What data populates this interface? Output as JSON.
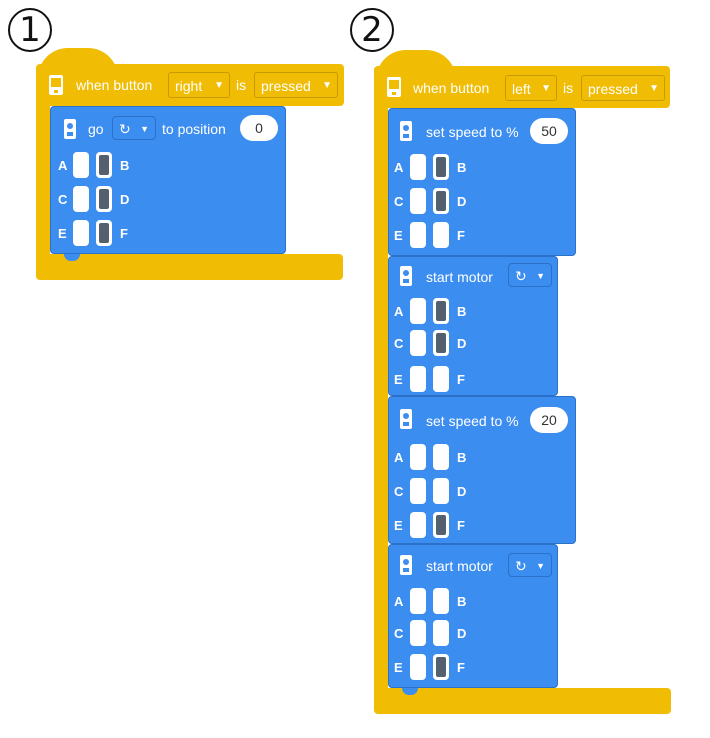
{
  "program1": {
    "number": "1",
    "event": {
      "prefix": "when button",
      "button": "right",
      "is": "is",
      "state": "pressed"
    },
    "blocks": [
      {
        "label": "go",
        "direction_icon": "rotate-clockwise-icon",
        "suffix": "to position",
        "value": "0",
        "ports": {
          "A": false,
          "B": true,
          "C": false,
          "D": true,
          "E": false,
          "F": true
        }
      }
    ]
  },
  "program2": {
    "number": "2",
    "event": {
      "prefix": "when button",
      "button": "left",
      "is": "is",
      "state": "pressed"
    },
    "blocks": [
      {
        "label": "set speed to %",
        "value": "50",
        "ports": {
          "A": false,
          "B": true,
          "C": false,
          "D": true,
          "E": false,
          "F": false
        }
      },
      {
        "label": "start motor",
        "direction_icon": "rotate-clockwise-icon",
        "ports": {
          "A": false,
          "B": true,
          "C": false,
          "D": true,
          "E": false,
          "F": false
        }
      },
      {
        "label": "set speed to %",
        "value": "20",
        "ports": {
          "A": false,
          "B": false,
          "C": false,
          "D": false,
          "E": false,
          "F": true
        }
      },
      {
        "label": "start motor",
        "direction_icon": "rotate-clockwise-icon",
        "ports": {
          "A": false,
          "B": false,
          "C": false,
          "D": false,
          "E": false,
          "F": true
        }
      }
    ]
  },
  "colors": {
    "event": "#f0bd04",
    "motor_block": "#3c8df0"
  },
  "glyphs": {
    "dropdown_arrow": "▼",
    "rotate": "↻"
  }
}
